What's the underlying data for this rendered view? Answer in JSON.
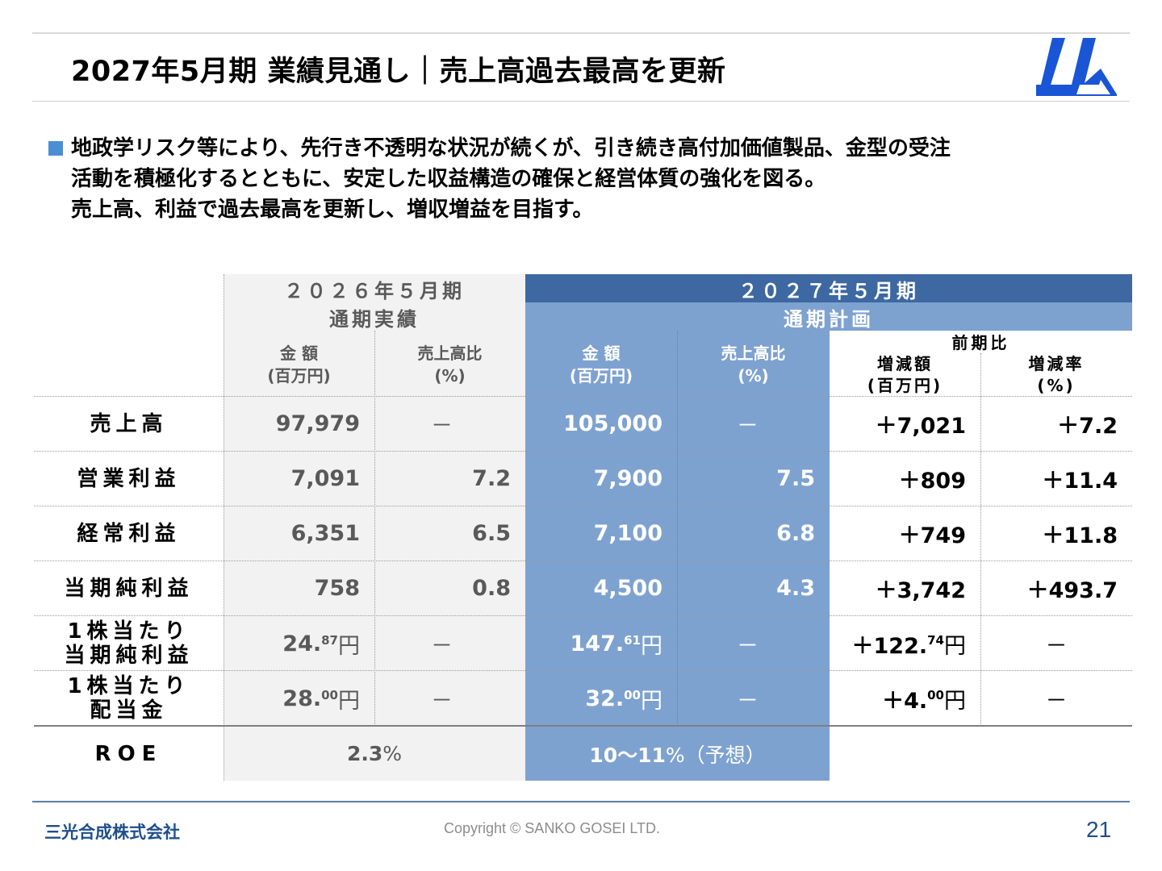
{
  "title": "2027年5月期 業績見通し｜売上高過去最高を更新",
  "bullet": {
    "lines": [
      "地政学リスク等により、先行き不透明な状況が続くが、引き続き高付加価値製品、金型の受注",
      "活動を積極化するとともに、安定した収益構造の確保と経営体質の強化を図る。",
      "売上高、利益で過去最高を更新し、増収増益を目指す。"
    ]
  },
  "table": {
    "h2026": "２０２６年５月期",
    "h2026_sub": "通期実績",
    "h2027": "２０２７年５月期",
    "h2027_sub": "通期計画",
    "amount_label": "金 額",
    "amount_unit": "(百万円)",
    "ratio_label": "売上高比",
    "ratio_unit": "(%)",
    "yoy_label": "前期比",
    "change_amount_label": "増減額",
    "change_amount_unit": "(百万円)",
    "change_rate_label": "増減率",
    "change_rate_unit": "(%)",
    "rows": [
      {
        "label": "売上高",
        "a2026": "97,979",
        "r2026": "－",
        "a2027": "105,000",
        "r2027": "－",
        "chg": "＋7,021",
        "rate": "＋7.2"
      },
      {
        "label": "営業利益",
        "a2026": "7,091",
        "r2026": "7.2",
        "a2027": "7,900",
        "r2027": "7.5",
        "chg": "＋809",
        "rate": "＋11.4"
      },
      {
        "label": "経常利益",
        "a2026": "6,351",
        "r2026": "6.5",
        "a2027": "7,100",
        "r2027": "6.8",
        "chg": "＋749",
        "rate": "＋11.8"
      },
      {
        "label": "当期純利益",
        "a2026": "758",
        "r2026": "0.8",
        "a2027": "4,500",
        "r2027": "4.3",
        "chg": "＋3,742",
        "rate": "＋493.7"
      }
    ],
    "eps": {
      "label1": "1株当たり",
      "label2": "当期純利益",
      "a2026_int": "24.",
      "a2026_dec": "87",
      "a2027_int": "147.",
      "a2027_dec": "61",
      "chg_int": "＋122.",
      "chg_dec": "74",
      "yen": "円",
      "dash": "－"
    },
    "dps": {
      "label1": "1株当たり",
      "label2": "配当金",
      "a2026_int": "28.",
      "a2026_dec": "00",
      "a2027_int": "32.",
      "a2027_dec": "00",
      "chg_int": "＋4.",
      "chg_dec": "00",
      "yen": "円",
      "dash": "－"
    },
    "roe": {
      "label": "ROE",
      "v2026_num": "2.3",
      "v2026_pct": "%",
      "v2027_num": "10～11",
      "v2027_pct": "%（予想）"
    }
  },
  "footer": {
    "company": "三光合成株式会社",
    "copyright": "Copyright © SANKO GOSEI LTD.",
    "page": "21"
  },
  "colors": {
    "header_dark_blue": "#3d68a1",
    "plan_blue": "#7ea2d0",
    "actual_gray": "#f2f2f2",
    "bullet_blue": "#4a8fd4",
    "logo_blue": "#1a55d6"
  }
}
